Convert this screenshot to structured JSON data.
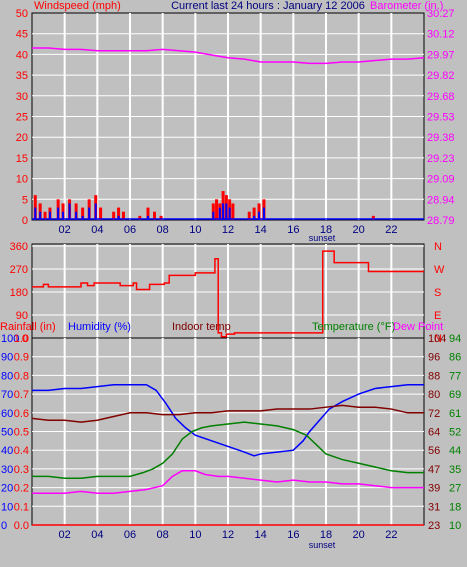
{
  "chart_data": [
    {
      "type": "line",
      "title": "Current last 24 hours : January 12 2006",
      "left_axis_label": "Windspeed (mph)",
      "right_axis_label": "Barometer (in.)",
      "left_ticks": [
        0,
        5,
        10,
        15,
        20,
        25,
        30,
        35,
        40,
        45,
        50
      ],
      "right_ticks": [
        "28.79",
        "28.94",
        "29.09",
        "29.23",
        "29.38",
        "29.53",
        "29.68",
        "29.82",
        "29.97",
        "30.12",
        "30.27"
      ],
      "x_ticks": [
        "02",
        "04",
        "06",
        "08",
        "10",
        "12",
        "14",
        "16",
        "18",
        "20",
        "22"
      ],
      "x_range": [
        0,
        24
      ],
      "ylim": [
        0,
        50
      ],
      "right_ylim": [
        28.79,
        30.27
      ],
      "sunset_label": "sunset",
      "sunset_hour": 17.8,
      "colors": {
        "gust": "#ff0000",
        "wind": "#0000ff",
        "barometer": "#ff00ff"
      },
      "series": [
        {
          "axis": "right",
          "color": "#ff00ff",
          "points": [
            [
              0,
              30.02
            ],
            [
              1,
              30.02
            ],
            [
              2,
              30.01
            ],
            [
              3,
              30.01
            ],
            [
              4,
              30.0
            ],
            [
              5,
              30.0
            ],
            [
              6,
              30.0
            ],
            [
              7,
              30.0
            ],
            [
              8,
              30.01
            ],
            [
              9,
              30.0
            ],
            [
              10,
              29.99
            ],
            [
              11,
              29.97
            ],
            [
              12,
              29.95
            ],
            [
              13,
              29.94
            ],
            [
              14,
              29.92
            ],
            [
              15,
              29.92
            ],
            [
              16,
              29.92
            ],
            [
              17,
              29.91
            ],
            [
              18,
              29.91
            ],
            [
              19,
              29.92
            ],
            [
              20,
              29.92
            ],
            [
              21,
              29.93
            ],
            [
              22,
              29.94
            ],
            [
              23,
              29.94
            ],
            [
              24,
              29.95
            ]
          ]
        }
      ],
      "gust_bars": [
        [
          0.2,
          6
        ],
        [
          0.5,
          4
        ],
        [
          0.8,
          2
        ],
        [
          1.1,
          3
        ],
        [
          1.6,
          5
        ],
        [
          1.9,
          4
        ],
        [
          2.3,
          5
        ],
        [
          2.7,
          4
        ],
        [
          3.1,
          3
        ],
        [
          3.5,
          5
        ],
        [
          3.9,
          6
        ],
        [
          4.2,
          3
        ],
        [
          5.0,
          2
        ],
        [
          5.3,
          3
        ],
        [
          5.6,
          2
        ],
        [
          6.6,
          1
        ],
        [
          7.1,
          3
        ],
        [
          7.5,
          2
        ],
        [
          7.9,
          1
        ],
        [
          11.1,
          4
        ],
        [
          11.3,
          5
        ],
        [
          11.5,
          4
        ],
        [
          11.7,
          7
        ],
        [
          11.9,
          6
        ],
        [
          12.1,
          5
        ],
        [
          12.3,
          4
        ],
        [
          13.3,
          2
        ],
        [
          13.6,
          3
        ],
        [
          13.9,
          4
        ],
        [
          14.2,
          5
        ],
        [
          20.9,
          1
        ]
      ],
      "wind_bars": [
        [
          0.2,
          3
        ],
        [
          0.5,
          2
        ],
        [
          1.1,
          2
        ],
        [
          1.6,
          3
        ],
        [
          1.9,
          2
        ],
        [
          2.3,
          4
        ],
        [
          2.7,
          2
        ],
        [
          3.1,
          1
        ],
        [
          3.5,
          3
        ],
        [
          3.9,
          4
        ],
        [
          5.3,
          1
        ],
        [
          7.1,
          1
        ],
        [
          11.1,
          2
        ],
        [
          11.5,
          3
        ],
        [
          11.7,
          4
        ],
        [
          11.9,
          4
        ],
        [
          12.1,
          3
        ],
        [
          13.6,
          1
        ],
        [
          13.9,
          2
        ],
        [
          14.2,
          3
        ]
      ]
    },
    {
      "type": "line",
      "title": "",
      "left_ticks": [
        0,
        90,
        180,
        270,
        360
      ],
      "right_ticks": [
        "N",
        "E",
        "S",
        "W",
        "N"
      ],
      "x_range": [
        0,
        24
      ],
      "ylim": [
        0,
        360
      ],
      "colors": {
        "direction": "#ff0000"
      },
      "series": [
        {
          "color": "#ff0000",
          "points": [
            [
              0,
              200
            ],
            [
              0.7,
              200
            ],
            [
              0.7,
              210
            ],
            [
              1.0,
              210
            ],
            [
              1.0,
              200
            ],
            [
              3.0,
              200
            ],
            [
              3.0,
              215
            ],
            [
              3.4,
              215
            ],
            [
              3.4,
              205
            ],
            [
              3.8,
              205
            ],
            [
              3.8,
              215
            ],
            [
              5.4,
              215
            ],
            [
              5.4,
              205
            ],
            [
              6.2,
              205
            ],
            [
              6.2,
              215
            ],
            [
              6.4,
              215
            ],
            [
              6.4,
              190
            ],
            [
              7.2,
              190
            ],
            [
              7.2,
              210
            ],
            [
              8.1,
              210
            ],
            [
              8.1,
              215
            ],
            [
              8.4,
              215
            ],
            [
              8.4,
              245
            ],
            [
              10.0,
              245
            ],
            [
              10.0,
              255
            ],
            [
              11.2,
              255
            ],
            [
              11.2,
              310
            ],
            [
              11.4,
              310
            ],
            [
              11.4,
              20
            ],
            [
              11.6,
              20
            ],
            [
              11.6,
              5
            ],
            [
              11.9,
              5
            ],
            [
              11.9,
              15
            ],
            [
              12.4,
              15
            ],
            [
              12.4,
              20
            ],
            [
              17.8,
              20
            ],
            [
              17.8,
              340
            ],
            [
              18.5,
              340
            ],
            [
              18.5,
              295
            ],
            [
              20.6,
              295
            ],
            [
              20.6,
              260
            ],
            [
              24,
              260
            ]
          ]
        }
      ]
    },
    {
      "type": "line",
      "labels": {
        "rainfall": "Rainfall (in)",
        "humidity": "Humidity (%)",
        "indoor": "Indoor temp",
        "temperature": "Temperature (°F)",
        "dewpoint": "Dew Point"
      },
      "humidity_ticks": [
        0,
        10,
        20,
        30,
        40,
        50,
        60,
        70,
        80,
        90,
        100
      ],
      "rain_ticks": [
        "0.0",
        "0.1",
        "0.2",
        "0.3",
        "0.4",
        "0.5",
        "0.6",
        "0.7",
        "0.8",
        "0.9",
        "1.0"
      ],
      "indoor_ticks": [
        23,
        31,
        39,
        47,
        56,
        64,
        72,
        80,
        88,
        96,
        104
      ],
      "temp_ticks": [
        10,
        18,
        27,
        35,
        44,
        52,
        61,
        69,
        77,
        86,
        94
      ],
      "x_ticks": [
        "02",
        "04",
        "06",
        "08",
        "10",
        "12",
        "14",
        "16",
        "18",
        "20",
        "22"
      ],
      "x_range": [
        0,
        24
      ],
      "ylim": [
        0,
        100
      ],
      "sunset_label": "sunset",
      "sunset_hour": 17.8,
      "colors": {
        "rainfall": "#ff0000",
        "humidity": "#0000ff",
        "indoor": "#800000",
        "temperature": "#008000",
        "dewpoint": "#ff00ff"
      },
      "series": [
        {
          "color": "#0000ff",
          "points": [
            [
              0,
              72
            ],
            [
              1,
              72
            ],
            [
              2,
              73
            ],
            [
              3,
              73
            ],
            [
              4,
              74
            ],
            [
              5,
              75
            ],
            [
              6,
              75
            ],
            [
              7,
              75
            ],
            [
              7.6,
              72
            ],
            [
              8.2,
              65
            ],
            [
              8.8,
              57
            ],
            [
              9.4,
              52
            ],
            [
              10,
              48
            ],
            [
              11,
              45
            ],
            [
              12,
              42
            ],
            [
              13,
              39
            ],
            [
              13.6,
              37
            ],
            [
              14,
              38
            ],
            [
              15,
              39
            ],
            [
              16,
              40
            ],
            [
              16.6,
              45
            ],
            [
              17,
              50
            ],
            [
              17.6,
              56
            ],
            [
              18.2,
              62
            ],
            [
              19,
              66
            ],
            [
              20,
              70
            ],
            [
              21,
              73
            ],
            [
              22,
              74
            ],
            [
              23,
              75
            ],
            [
              24,
              75
            ]
          ]
        },
        {
          "color": "#800000",
          "points": [
            [
              0,
              57
            ],
            [
              1,
              56
            ],
            [
              2,
              56
            ],
            [
              3,
              55
            ],
            [
              4,
              56
            ],
            [
              5,
              58
            ],
            [
              6,
              60
            ],
            [
              7,
              60
            ],
            [
              8,
              59
            ],
            [
              9,
              59
            ],
            [
              10,
              60
            ],
            [
              11,
              60
            ],
            [
              12,
              61
            ],
            [
              13,
              61
            ],
            [
              14,
              61
            ],
            [
              15,
              62
            ],
            [
              16,
              62
            ],
            [
              17,
              62
            ],
            [
              18,
              63
            ],
            [
              19,
              64
            ],
            [
              20,
              63
            ],
            [
              21,
              63
            ],
            [
              22,
              62
            ],
            [
              23,
              60
            ],
            [
              24,
              60
            ]
          ]
        },
        {
          "color": "#008000",
          "points": [
            [
              0,
              26
            ],
            [
              1,
              26
            ],
            [
              2,
              25
            ],
            [
              3,
              25
            ],
            [
              4,
              26
            ],
            [
              5,
              26
            ],
            [
              6,
              26
            ],
            [
              6.8,
              28
            ],
            [
              7.4,
              30
            ],
            [
              8,
              33
            ],
            [
              8.6,
              38
            ],
            [
              9.2,
              46
            ],
            [
              9.8,
              50
            ],
            [
              10.4,
              52
            ],
            [
              11,
              53
            ],
            [
              12,
              54
            ],
            [
              13,
              55
            ],
            [
              14,
              54
            ],
            [
              15,
              53
            ],
            [
              16,
              51
            ],
            [
              16.8,
              48
            ],
            [
              17.4,
              43
            ],
            [
              18,
              38
            ],
            [
              19,
              35
            ],
            [
              20,
              33
            ],
            [
              21,
              31
            ],
            [
              22,
              29
            ],
            [
              23,
              28
            ],
            [
              24,
              28
            ]
          ]
        },
        {
          "color": "#ff00ff",
          "points": [
            [
              0,
              17
            ],
            [
              1,
              17
            ],
            [
              2,
              17
            ],
            [
              3,
              18
            ],
            [
              4,
              17
            ],
            [
              5,
              17
            ],
            [
              6,
              18
            ],
            [
              7,
              19
            ],
            [
              8,
              21
            ],
            [
              8.6,
              26
            ],
            [
              9.2,
              29
            ],
            [
              10,
              29
            ],
            [
              10.6,
              27
            ],
            [
              11.4,
              26
            ],
            [
              12,
              26
            ],
            [
              13,
              25
            ],
            [
              14,
              24
            ],
            [
              15,
              23
            ],
            [
              16,
              24
            ],
            [
              17,
              23
            ],
            [
              18,
              23
            ],
            [
              19,
              22
            ],
            [
              20,
              22
            ],
            [
              21,
              21
            ],
            [
              22,
              20
            ],
            [
              23,
              20
            ],
            [
              24,
              20
            ]
          ]
        },
        {
          "color": "#ff0000",
          "points": [
            [
              0,
              0
            ],
            [
              24,
              0
            ]
          ]
        }
      ]
    }
  ]
}
